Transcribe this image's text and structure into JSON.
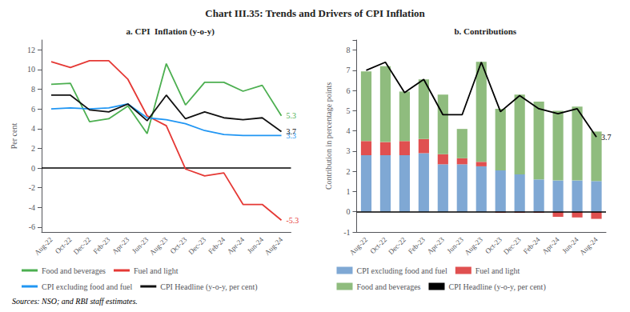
{
  "title": "Chart III.35: Trends and Drivers of CPI Inflation",
  "annotations": [
    {
      "text": "Sources: NSO; and RBI staff estimates."
    }
  ],
  "chart_data": [
    {
      "type": "line",
      "subtitle": "a. CPI  Inflation (y-o-y)",
      "ylabel": "Per cent",
      "categories": [
        "Aug-22",
        "Oct-22",
        "Dec-22",
        "Feb-23",
        "Apr-23",
        "Jun-23",
        "Aug-23",
        "Oct-23",
        "Dec-23",
        "Feb-24",
        "Apr-24",
        "Jun-24",
        "Aug-24"
      ],
      "series": [
        {
          "name": "Food and beverages",
          "color": "#4caf50",
          "values": [
            8.5,
            8.6,
            4.7,
            5.0,
            6.3,
            3.5,
            10.6,
            6.4,
            8.7,
            8.7,
            7.8,
            8.4,
            5.3
          ]
        },
        {
          "name": "Fuel and light",
          "color": "#e53935",
          "values": [
            10.8,
            10.2,
            10.9,
            10.9,
            9.0,
            5.3,
            4.3,
            -0.1,
            -0.8,
            -0.5,
            -3.7,
            -3.7,
            -5.3
          ]
        },
        {
          "name": "CPI excluding food and fuel",
          "color": "#2196f3",
          "values": [
            6.0,
            6.1,
            6.0,
            6.1,
            6.5,
            5.1,
            4.9,
            4.5,
            3.8,
            3.4,
            3.3,
            3.3,
            3.3
          ]
        },
        {
          "name": "CPI Headline (y-o-y, per cent)",
          "color": "#111111",
          "values": [
            7.4,
            7.4,
            5.9,
            5.7,
            6.5,
            4.8,
            7.4,
            5.0,
            5.7,
            5.1,
            4.9,
            5.1,
            3.7
          ]
        }
      ],
      "annotations": [
        {
          "text": "5.3",
          "x": "Aug-24",
          "series": "Food and beverages"
        },
        {
          "text": "3.7",
          "x": "Aug-24",
          "series": "CPI Headline (y-o-y, per cent)"
        },
        {
          "text": "3.3",
          "x": "Aug-24",
          "series": "CPI excluding food and fuel"
        },
        {
          "text": "-5.3",
          "x": "Aug-24",
          "series": "Fuel and light"
        }
      ],
      "ylim": [
        -6.5,
        13.0
      ],
      "yticks": [
        -6,
        -4,
        -2,
        0,
        2,
        4,
        6,
        8,
        10,
        12
      ],
      "grid": false,
      "legend": "bottom"
    },
    {
      "type": "bar",
      "subtitle": "b. Contributions",
      "ylabel": "Contribution in percentage points",
      "categories": [
        "Aug-22",
        "Oct-22",
        "Dec-22",
        "Feb-23",
        "Apr-23",
        "Jun-23",
        "Aug-23",
        "Oct-23",
        "Dec-23",
        "Feb-24",
        "Apr-24",
        "Jun-24",
        "Aug-24"
      ],
      "stacked": true,
      "series": [
        {
          "name": "CPI excluding food and fuel",
          "type": "bar",
          "color": "#7fa8d4",
          "values": [
            2.8,
            2.8,
            2.8,
            2.9,
            2.35,
            2.35,
            2.25,
            2.05,
            1.85,
            1.6,
            1.55,
            1.55,
            1.52
          ]
        },
        {
          "name": "Fuel and light",
          "type": "bar",
          "color": "#e05050",
          "values": [
            0.7,
            0.65,
            0.7,
            0.7,
            0.5,
            0.3,
            0.22,
            -0.05,
            -0.05,
            -0.05,
            -0.25,
            -0.28,
            -0.35
          ]
        },
        {
          "name": "Food and beverages",
          "type": "bar",
          "color": "#8fbc7e",
          "values": [
            3.45,
            3.75,
            2.45,
            2.95,
            2.95,
            1.45,
            4.95,
            3.05,
            3.95,
            3.85,
            3.45,
            3.65,
            2.45
          ]
        },
        {
          "name": "CPI Headline (y-o-y, per cent)",
          "type": "line",
          "color": "#000000",
          "values": [
            7.0,
            7.4,
            5.9,
            6.55,
            4.8,
            4.8,
            7.4,
            4.95,
            5.75,
            5.1,
            4.85,
            5.1,
            3.7
          ]
        }
      ],
      "annotations": [
        {
          "text": "3.7",
          "x": "Aug-24",
          "series": "CPI Headline (y-o-y, per cent)"
        }
      ],
      "ylim": [
        -1.0,
        8.5
      ],
      "yticks": [
        -1,
        0,
        1,
        2,
        3,
        4,
        5,
        6,
        7,
        8
      ],
      "grid": false,
      "legend": "bottom"
    }
  ]
}
